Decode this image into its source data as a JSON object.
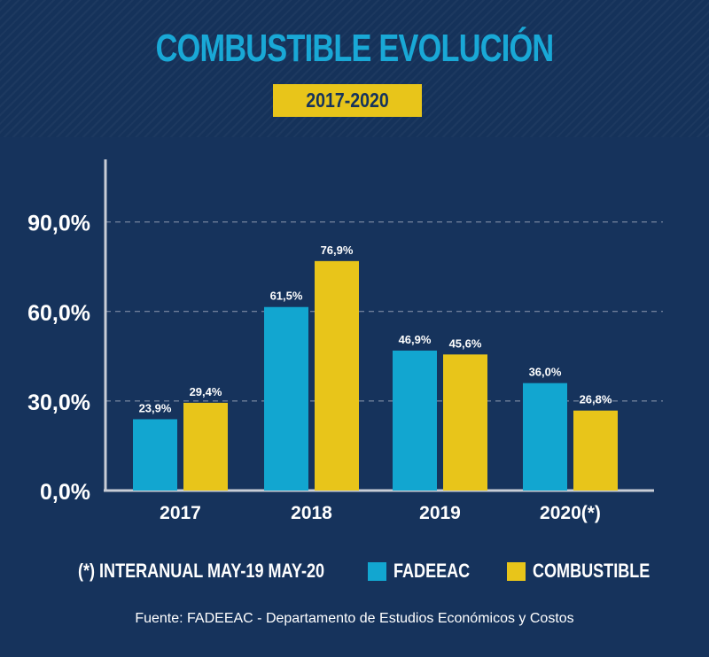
{
  "header": {
    "title": "COMBUSTIBLE EVOLUCIÓN",
    "period": "2017-2020"
  },
  "colors": {
    "background": "#16335c",
    "fadeeac": "#12a6d0",
    "combustible": "#e8c51a",
    "axis": "#c8cdd6",
    "text": "#ffffff"
  },
  "chart_data": {
    "type": "bar",
    "categories": [
      "2017",
      "2018",
      "2019",
      "2020(*)"
    ],
    "series": [
      {
        "name": "FADEEAC",
        "values": [
          23.9,
          61.5,
          46.9,
          36.0
        ],
        "labels": [
          "23,9%",
          "61,5%",
          "46,9%",
          "36,0%"
        ]
      },
      {
        "name": "COMBUSTIBLE",
        "values": [
          29.4,
          76.9,
          45.6,
          26.8
        ],
        "labels": [
          "29,4%",
          "76,9%",
          "45,6%",
          "26,8%"
        ]
      }
    ],
    "yticks": [
      0,
      30,
      60,
      90
    ],
    "ytick_labels": [
      "0,0%",
      "30,0%",
      "60,0%",
      "90,0%"
    ],
    "ylim": [
      0,
      110
    ],
    "grid": "dashed horizontal at ticks",
    "legend_position": "bottom"
  },
  "footnote": "(*) INTERANUAL MAY-19 MAY-20",
  "legend": {
    "fadeeac": "FADEEAC",
    "combustible": "COMBUSTIBLE"
  },
  "source": "Fuente: FADEEAC - Departamento de Estudios Económicos y Costos"
}
